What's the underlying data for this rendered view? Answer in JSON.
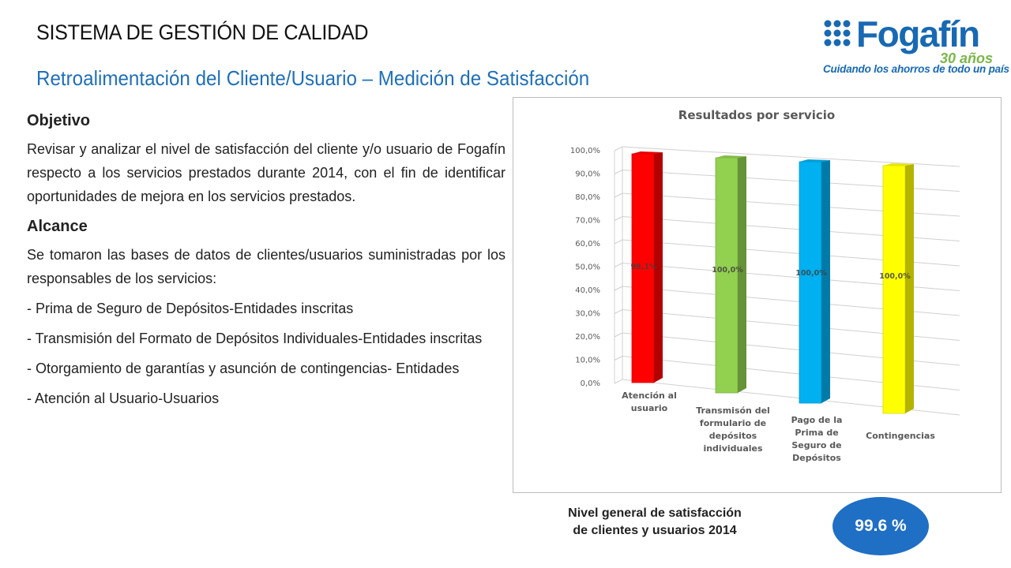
{
  "header": {
    "title": "SISTEMA DE GESTIÓN DE CALIDAD",
    "subtitle": "Retroalimentación del Cliente/Usuario – Medición de Satisfacción"
  },
  "logo": {
    "name": "Fogafín",
    "anniversary": "30 años",
    "tagline": "Cuidando los ahorros de todo un país"
  },
  "content": {
    "objective_heading": "Objetivo",
    "objective_text": "Revisar y analizar el nivel de satisfacción del cliente y/o usuario de Fogafín respecto a los servicios prestados durante 2014, con el fin de identificar oportunidades de mejora en los servicios prestados.",
    "scope_heading": "Alcance",
    "scope_text": "Se tomaron las bases de datos de clientes/usuarios suministradas por los responsables de los servicios:",
    "scope_items": [
      "- Prima de Seguro de Depósitos-Entidades inscritas",
      "- Transmisión del Formato de Depósitos Individuales-Entidades inscritas",
      "- Otorgamiento de garantías y asunción de contingencias- Entidades",
      "-  Atención al Usuario-Usuarios"
    ]
  },
  "summary": {
    "label": "Nivel general de satisfacción de clientes y usuarios 2014",
    "value": "99.6 %"
  },
  "chart_data": {
    "type": "bar",
    "title": "Resultados por servicio",
    "categories": [
      "Atención al usuario",
      "Transmisón del formulario de depósitos individuales",
      "Pago de la Prima de Seguro de Depósitos",
      "Contingencias"
    ],
    "values": [
      99.1,
      100.0,
      100.0,
      100.0
    ],
    "data_labels": [
      "99,1%",
      "100,0%",
      "100,0%",
      "100,0%"
    ],
    "colors": [
      "#ff0000",
      "#92d050",
      "#00b0f0",
      "#ffff00"
    ],
    "ylim": [
      0,
      100
    ],
    "yticks": [
      "0,0%",
      "10,0%",
      "20,0%",
      "30,0%",
      "40,0%",
      "50,0%",
      "60,0%",
      "70,0%",
      "80,0%",
      "90,0%",
      "100,0%"
    ],
    "style": "3d-perspective",
    "grid": true,
    "legend": "none"
  }
}
